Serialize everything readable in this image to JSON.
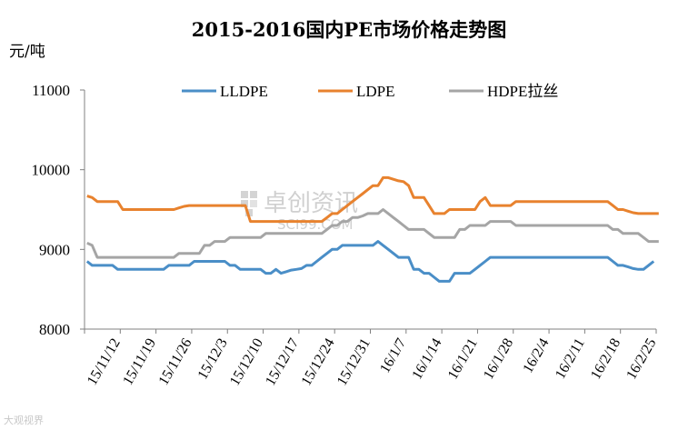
{
  "chart_data": {
    "type": "line",
    "title": "2015-2016国内PE市场价格走势图",
    "ylabel": "元/吨",
    "xlabel": "",
    "ylim": [
      8000,
      11000
    ],
    "yticks": [
      "8000",
      "9000",
      "10000",
      "11000"
    ],
    "xticks": [
      "15/11/12",
      "15/11/19",
      "15/11/26",
      "15/12/3",
      "15/12/10",
      "15/12/17",
      "15/12/24",
      "15/12/31",
      "16/1/7",
      "16/1/14",
      "16/1/21",
      "16/1/28",
      "16/2/4",
      "16/2/11",
      "16/2/18",
      "16/2/25"
    ],
    "legend_position": "top",
    "grid": false,
    "series": [
      {
        "name": "LLDPE",
        "color": "#4a8ec7",
        "values": [
          8850,
          8800,
          8800,
          8800,
          8800,
          8800,
          8750,
          8750,
          8750,
          8750,
          8750,
          8750,
          8750,
          8750,
          8750,
          8750,
          8800,
          8800,
          8800,
          8800,
          8800,
          8850,
          8850,
          8850,
          8850,
          8850,
          8850,
          8850,
          8800,
          8800,
          8750,
          8750,
          8750,
          8750,
          8750,
          8700,
          8700,
          8750,
          8700,
          8720,
          8740,
          8750,
          8760,
          8800,
          8800,
          8850,
          8900,
          8950,
          9000,
          9000,
          9050,
          9050,
          9050,
          9050,
          9050,
          9050,
          9050,
          9100,
          9050,
          9000,
          8950,
          8900,
          8900,
          8900,
          8750,
          8750,
          8700,
          8700,
          8650,
          8600,
          8600,
          8600,
          8700,
          8700,
          8700,
          8700,
          8750,
          8800,
          8850,
          8900,
          8900,
          8900,
          8900,
          8900,
          8900,
          8900,
          8900,
          8900,
          8900,
          8900,
          8900,
          8900,
          8900,
          8900,
          8900,
          8900,
          8900,
          8900,
          8900,
          8900,
          8900,
          8900,
          8900,
          8850,
          8800,
          8800,
          8780,
          8760,
          8750,
          8750,
          8800,
          8850
        ]
      },
      {
        "name": "LDPE",
        "color": "#e8822e",
        "values": [
          9670,
          9650,
          9600,
          9600,
          9600,
          9600,
          9600,
          9500,
          9500,
          9500,
          9500,
          9500,
          9500,
          9500,
          9500,
          9500,
          9500,
          9500,
          9520,
          9540,
          9550,
          9550,
          9550,
          9550,
          9550,
          9550,
          9550,
          9550,
          9550,
          9550,
          9550,
          9550,
          9350,
          9350,
          9350,
          9350,
          9350,
          9350,
          9350,
          9350,
          9350,
          9350,
          9350,
          9350,
          9350,
          9350,
          9350,
          9400,
          9450,
          9450,
          9500,
          9550,
          9600,
          9650,
          9700,
          9750,
          9800,
          9800,
          9900,
          9900,
          9880,
          9860,
          9850,
          9800,
          9650,
          9650,
          9650,
          9550,
          9450,
          9450,
          9450,
          9500,
          9500,
          9500,
          9500,
          9500,
          9500,
          9600,
          9650,
          9550,
          9550,
          9550,
          9550,
          9550,
          9600,
          9600,
          9600,
          9600,
          9600,
          9600,
          9600,
          9600,
          9600,
          9600,
          9600,
          9600,
          9600,
          9600,
          9600,
          9600,
          9600,
          9600,
          9600,
          9550,
          9500,
          9500,
          9480,
          9460,
          9450,
          9450,
          9450,
          9450,
          9450
        ]
      },
      {
        "name": "HDPE拉丝",
        "color": "#a5a5a5",
        "values": [
          9080,
          9050,
          8900,
          8900,
          8900,
          8900,
          8900,
          8900,
          8900,
          8900,
          8900,
          8900,
          8900,
          8900,
          8900,
          8900,
          8900,
          8900,
          8950,
          8950,
          8950,
          8950,
          8950,
          9050,
          9050,
          9100,
          9100,
          9100,
          9150,
          9150,
          9150,
          9150,
          9150,
          9150,
          9150,
          9200,
          9200,
          9200,
          9200,
          9200,
          9200,
          9200,
          9200,
          9200,
          9200,
          9200,
          9200,
          9250,
          9300,
          9300,
          9350,
          9350,
          9400,
          9400,
          9420,
          9450,
          9450,
          9450,
          9500,
          9450,
          9400,
          9350,
          9300,
          9250,
          9250,
          9250,
          9250,
          9200,
          9150,
          9150,
          9150,
          9150,
          9150,
          9250,
          9250,
          9300,
          9300,
          9300,
          9300,
          9350,
          9350,
          9350,
          9350,
          9350,
          9300,
          9300,
          9300,
          9300,
          9300,
          9300,
          9300,
          9300,
          9300,
          9300,
          9300,
          9300,
          9300,
          9300,
          9300,
          9300,
          9300,
          9300,
          9300,
          9250,
          9250,
          9200,
          9200,
          9200,
          9200,
          9150,
          9100,
          9100,
          9100
        ]
      }
    ]
  },
  "watermark": {
    "text": "卓创资讯",
    "subtext": "SCI99.COM"
  },
  "corner_watermark": "大观视界"
}
